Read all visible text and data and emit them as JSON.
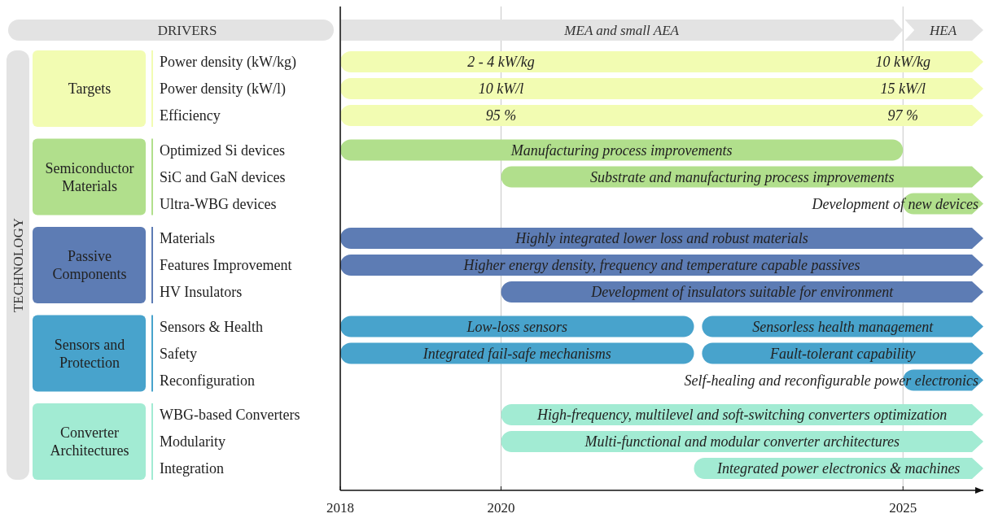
{
  "chart_data": {
    "type": "bar",
    "orientation": "horizontal",
    "categories": [
      "Power density (kW/kg)",
      "Power density (kW/l)",
      "Efficiency",
      "Optimized Si devices",
      "SiC and GaN devices",
      "Ultra-WBG devices",
      "Materials",
      "Features Improvement",
      "HV Insulators",
      "Sensors & Health",
      "Safety",
      "Reconfiguration",
      "WBG-based Converters",
      "Modularity",
      "Integration"
    ],
    "series": [
      {
        "base": [
          2018,
          2018,
          2018,
          2018,
          2020,
          2025,
          2018,
          2018,
          2020,
          2018,
          2018,
          2025,
          2020,
          2020,
          2022.4
        ],
        "values": [
          8,
          8,
          8,
          7,
          6,
          1,
          8,
          8,
          6,
          4.4,
          4.4,
          1,
          6,
          6,
          3.6
        ],
        "colors": [
          "#f2fcb2",
          "#f2fcb2",
          "#f2fcb2",
          "#b1df8c",
          "#b1df8c",
          "#b1df8c",
          "#5d7cb4",
          "#5d7cb4",
          "#5d7cb4",
          "#48a3cc",
          "#48a3cc",
          "#48a3cc",
          "#a2ebd3",
          "#a2ebd3",
          "#a2ebd3"
        ],
        "value_labels": [
          null,
          null,
          null,
          "Manufacturing process improvements",
          "Substrate and manufacturing process improvements",
          "Development of new devices",
          "Highly integrated lower loss and robust materials",
          "Higher energy density, frequency and temperature capable passives",
          "Development of insulators suitable for environment",
          "Low-loss sensors",
          "Integrated fail-safe mechanisms",
          "Self-healing and reconfigurable power electronics",
          "High-frequency, multilevel and soft-switching converters optimization",
          "Multi-functional and modular converter architectures",
          "Integrated power electronics & machines"
        ]
      },
      {
        "base": [
          null,
          null,
          null,
          null,
          null,
          null,
          null,
          null,
          null,
          2022.5,
          2022.5,
          null,
          null,
          null,
          null
        ],
        "values": [
          null,
          null,
          null,
          null,
          null,
          null,
          null,
          null,
          null,
          3.5,
          3.5,
          null,
          null,
          null,
          null
        ],
        "color": "#48a3cc",
        "value_labels": [
          null,
          null,
          null,
          null,
          null,
          null,
          null,
          null,
          null,
          "Sensorless health management",
          "Fault-tolerant capability",
          null,
          null,
          null,
          null
        ]
      }
    ],
    "xlim": [
      2018,
      2026
    ],
    "xticks": [
      2018,
      2020,
      2025
    ],
    "grid": "x",
    "annotations": [
      "DRIVERS",
      "TECHNOLOGY",
      "Targets",
      "Semiconductor Materials",
      "Passive Components",
      "Sensors and Protection",
      "Converter Architectures",
      "MEA and small AEA",
      "HEA",
      "2 - 4 kW/kg",
      "10 kW/kg",
      "10 kW/l",
      "15 kW/l",
      "95 %",
      "97 %"
    ]
  }
}
